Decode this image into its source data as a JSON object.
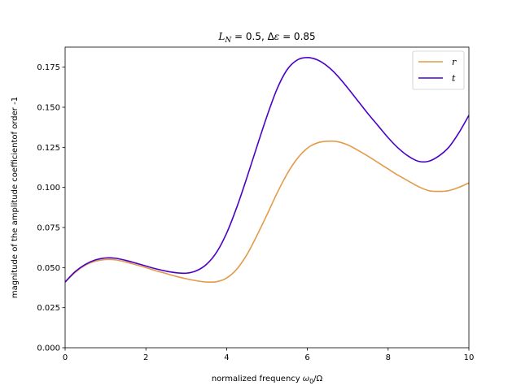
{
  "chart_data": {
    "type": "line",
    "title": "L_N = 0.5, Δε = 0.85",
    "title_parts": {
      "var1": "L",
      "sub1": "N",
      "eq1": " = 0.5, Δ",
      "var2": "ε",
      "eq2": " = 0.85"
    },
    "xlabel": "normalized frequency ω₀/Ω",
    "xlabel_parts": {
      "text": "normalized frequency ",
      "var": "ω",
      "sub": "0",
      "rest": "/Ω"
    },
    "ylabel": "magnitude of the amplitude coefficientof order -1",
    "xlim": [
      0,
      10
    ],
    "ylim": [
      0,
      0.1875
    ],
    "xticks": [
      0,
      2,
      4,
      6,
      8,
      10
    ],
    "xtick_labels": [
      "0",
      "2",
      "4",
      "6",
      "8",
      "10"
    ],
    "yticks": [
      0,
      0.025,
      0.05,
      0.075,
      0.1,
      0.125,
      0.15,
      0.175
    ],
    "ytick_labels": [
      "0.000",
      "0.025",
      "0.050",
      "0.075",
      "0.100",
      "0.125",
      "0.150",
      "0.175"
    ],
    "grid": false,
    "legend_position": "top-right",
    "x": [
      0,
      0.25,
      0.5,
      0.75,
      1,
      1.25,
      1.5,
      1.75,
      2,
      2.25,
      2.5,
      2.75,
      3,
      3.25,
      3.5,
      3.75,
      4,
      4.25,
      4.5,
      4.75,
      5,
      5.25,
      5.5,
      5.75,
      6,
      6.25,
      6.5,
      6.75,
      7,
      7.25,
      7.5,
      7.75,
      8,
      8.25,
      8.5,
      8.75,
      9,
      9.25,
      9.5,
      9.75,
      10
    ],
    "series": [
      {
        "name": "r",
        "color": "#e39a4a",
        "values": [
          0.041,
          0.047,
          0.0515,
          0.054,
          0.055,
          0.0548,
          0.0535,
          0.0518,
          0.05,
          0.048,
          0.0463,
          0.0445,
          0.043,
          0.0418,
          0.041,
          0.0412,
          0.0435,
          0.049,
          0.058,
          0.07,
          0.083,
          0.0965,
          0.1085,
          0.118,
          0.1245,
          0.1278,
          0.1288,
          0.1285,
          0.1265,
          0.1232,
          0.1195,
          0.1155,
          0.1115,
          0.1075,
          0.104,
          0.1005,
          0.098,
          0.0975,
          0.098,
          0.1,
          0.1028
        ]
      },
      {
        "name": "t",
        "color": "#4b00c8",
        "values": [
          0.041,
          0.0475,
          0.052,
          0.0548,
          0.056,
          0.0558,
          0.0545,
          0.0528,
          0.051,
          0.0492,
          0.0478,
          0.0468,
          0.0465,
          0.048,
          0.052,
          0.0595,
          0.0715,
          0.0875,
          0.106,
          0.1255,
          0.1445,
          0.1615,
          0.1735,
          0.1795,
          0.181,
          0.1795,
          0.1755,
          0.1695,
          0.162,
          0.154,
          0.146,
          0.1385,
          0.131,
          0.1245,
          0.1195,
          0.1163,
          0.1163,
          0.1195,
          0.125,
          0.134,
          0.145
        ]
      }
    ]
  }
}
